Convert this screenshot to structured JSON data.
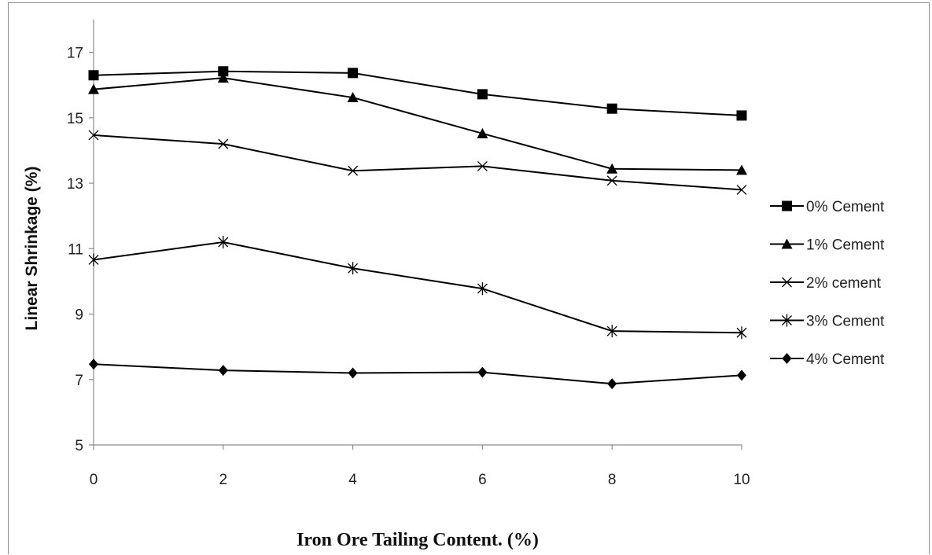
{
  "chart_data": {
    "type": "line",
    "title": "",
    "xlabel": "Iron Ore Tailing Content. (%)",
    "ylabel": "Linear Shrinkage (%)",
    "x": [
      0,
      2,
      4,
      6,
      8,
      10
    ],
    "xlim": [
      0,
      10
    ],
    "ylim": [
      5,
      18
    ],
    "xticks": [
      0,
      2,
      4,
      6,
      8,
      10
    ],
    "yticks": [
      5,
      7,
      9,
      11,
      13,
      15,
      17
    ],
    "grid": false,
    "legend": "right",
    "series": [
      {
        "name": "0% Cement",
        "marker": "square",
        "values": [
          16.3,
          16.42,
          16.37,
          15.72,
          15.28,
          15.07
        ]
      },
      {
        "name": "1% Cement",
        "marker": "triangle",
        "values": [
          15.87,
          16.22,
          15.62,
          14.52,
          13.44,
          13.4
        ]
      },
      {
        "name": "2% cement",
        "marker": "x",
        "values": [
          14.47,
          14.2,
          13.38,
          13.52,
          13.08,
          12.8
        ]
      },
      {
        "name": "3% Cement",
        "marker": "star",
        "values": [
          10.66,
          11.2,
          10.4,
          9.78,
          8.48,
          8.43
        ]
      },
      {
        "name": "4% Cement",
        "marker": "diamond",
        "values": [
          7.47,
          7.28,
          7.2,
          7.22,
          6.87,
          7.13
        ]
      }
    ]
  }
}
